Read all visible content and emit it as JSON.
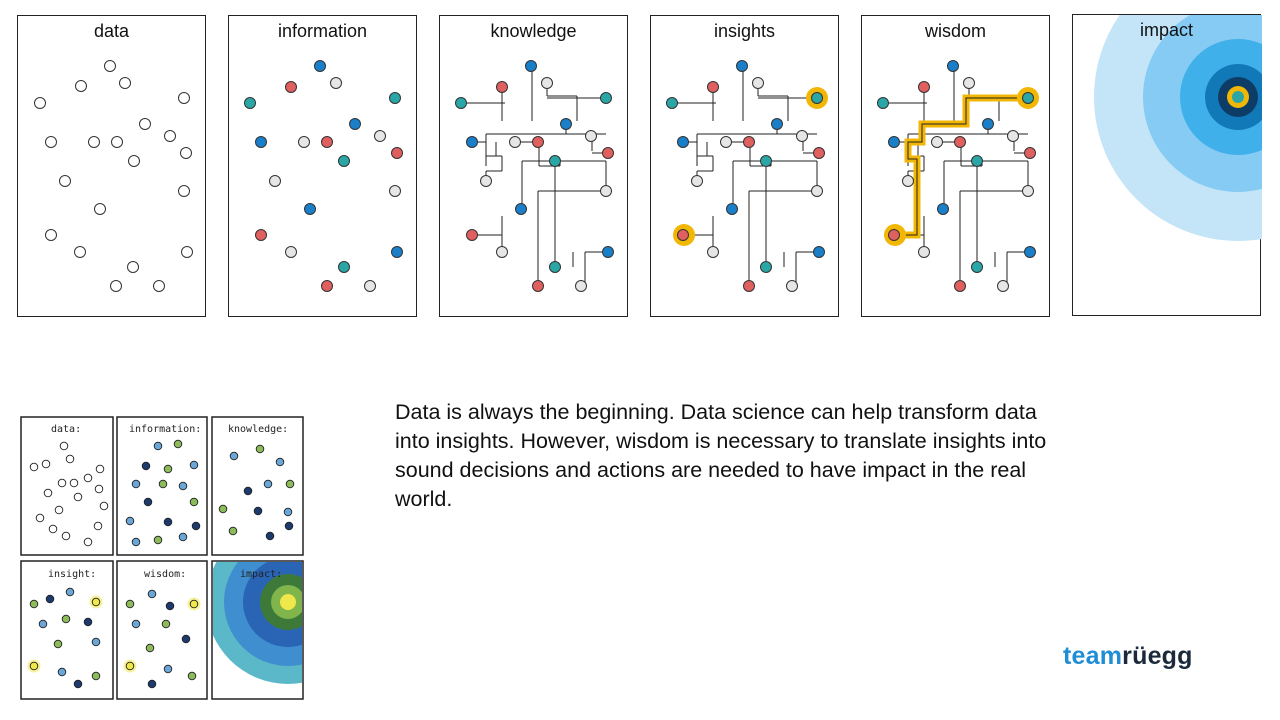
{
  "panels": [
    {
      "id": "data",
      "title": "data"
    },
    {
      "id": "information",
      "title": "information"
    },
    {
      "id": "knowledge",
      "title": "knowledge"
    },
    {
      "id": "insights",
      "title": "insights"
    },
    {
      "id": "wisdom",
      "title": "wisdom"
    },
    {
      "id": "impact",
      "title": "impact"
    }
  ],
  "sketch": {
    "labels": [
      "data:",
      "information:",
      "knowledge:",
      "insight:",
      "wisdom:",
      "impact:"
    ]
  },
  "description": "Data is always the beginning. Data science can help transform data into insights. However, wisdom is necessary to translate insights into sound decisions and actions are needed to have impact in the real world.",
  "logo": {
    "part1": "team",
    "part2": "rüegg"
  },
  "colors": {
    "blue": "#1a7fc9",
    "red": "#e05f5f",
    "teal": "#2aa6a6",
    "gray": "#e6e6e6",
    "highlight": "#f2b705"
  },
  "icons": [
    "dot-node",
    "network-tree",
    "highlight-ring",
    "target-circles"
  ]
}
